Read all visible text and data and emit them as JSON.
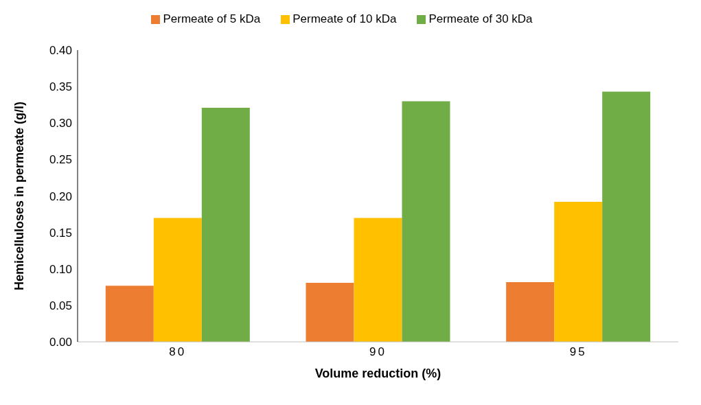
{
  "chart_data": {
    "type": "bar",
    "xlabel": "Volume reduction (%)",
    "ylabel": "Hemicelluloses in permeate (g/l)",
    "categories": [
      "80",
      "90",
      "95"
    ],
    "series": [
      {
        "name": "Permeate of 5 kDa",
        "color": "#ed7d31",
        "values": [
          0.077,
          0.081,
          0.082
        ]
      },
      {
        "name": "Permeate of 10 kDa",
        "color": "#ffc000",
        "values": [
          0.17,
          0.17,
          0.192
        ]
      },
      {
        "name": "Permeate of 30 kDa",
        "color": "#70ad47",
        "values": [
          0.321,
          0.33,
          0.343
        ]
      }
    ],
    "ylim": [
      0,
      0.4
    ],
    "yticks": [
      {
        "value": 0,
        "label": "0.00"
      },
      {
        "value": 0.05,
        "label": "0.05"
      },
      {
        "value": 0.1,
        "label": "0.10"
      },
      {
        "value": 0.15,
        "label": "0.15"
      },
      {
        "value": 0.2,
        "label": "0.20"
      },
      {
        "value": 0.25,
        "label": "0.25"
      },
      {
        "value": 0.3,
        "label": "0.30"
      },
      {
        "value": 0.35,
        "label": "0.35"
      },
      {
        "value": 0.4,
        "label": "0.40"
      }
    ],
    "grid": false,
    "legend": "top"
  }
}
